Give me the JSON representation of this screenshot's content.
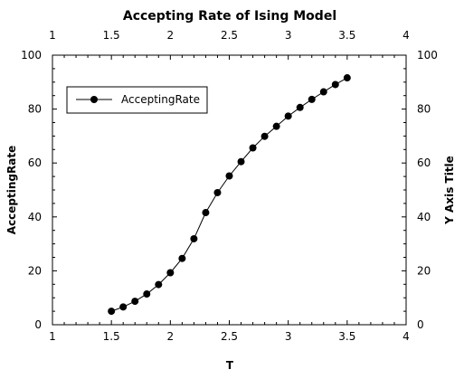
{
  "chart_data": {
    "type": "line",
    "title": "Accepting Rate of Ising Model",
    "xlabel": "T",
    "ylabel": "AcceptingRate",
    "ylabel_right": "Y Axis Title",
    "xlim": [
      1,
      4
    ],
    "ylim": [
      0,
      100
    ],
    "x_ticks": [
      "1",
      "1.5",
      "2",
      "2.5",
      "3",
      "3.5",
      "4"
    ],
    "y_ticks": [
      "0",
      "20",
      "40",
      "60",
      "80",
      "100"
    ],
    "grid": false,
    "legend": {
      "position": "top-left",
      "entries": [
        "AcceptingRate"
      ]
    },
    "series": [
      {
        "name": "AcceptingRate",
        "x": [
          1.5,
          1.6,
          1.7,
          1.8,
          1.9,
          2.0,
          2.1,
          2.2,
          2.3,
          2.4,
          2.5,
          2.6,
          2.7,
          2.8,
          2.9,
          3.0,
          3.1,
          3.2,
          3.3,
          3.4,
          3.5
        ],
        "values": [
          5.0,
          6.6,
          8.7,
          11.4,
          14.9,
          19.3,
          24.6,
          31.9,
          41.6,
          49.0,
          55.2,
          60.5,
          65.6,
          69.9,
          73.6,
          77.4,
          80.6,
          83.6,
          86.4,
          89.1,
          91.6
        ]
      }
    ]
  }
}
